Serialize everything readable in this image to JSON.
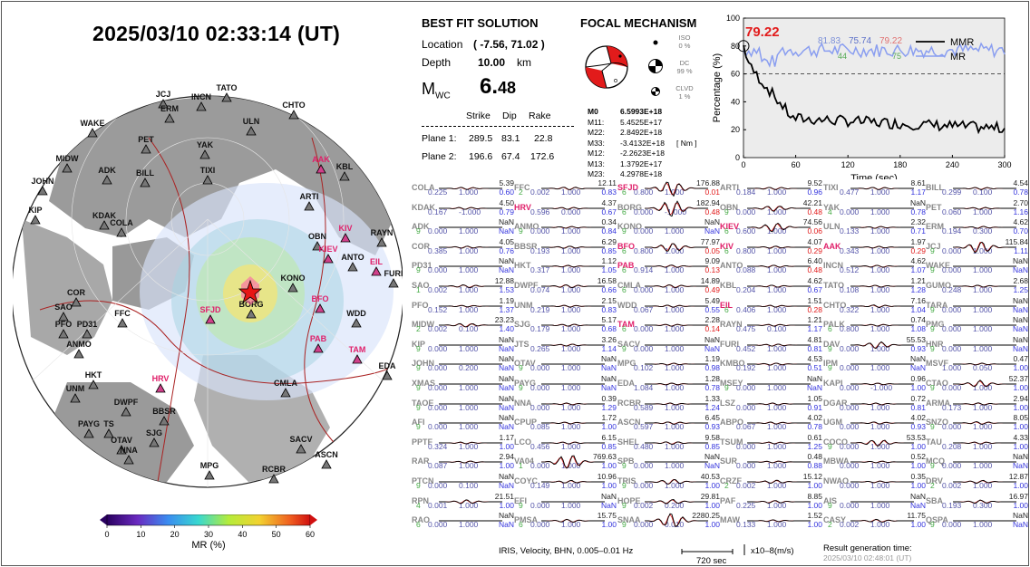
{
  "title": "2025/03/10  02:33:14 (UT)",
  "best_fit": {
    "header": "BEST FIT SOLUTION",
    "location_label": "Location",
    "location_value": "( -7.56,  71.02 )",
    "depth_label": "Depth",
    "depth_value": "10.00",
    "depth_unit": "km",
    "mw_label": "M",
    "mw_sub": "WC",
    "mw_value_int": "6.",
    "mw_value_dec": "48",
    "np_headers": [
      "Strike",
      "Dip",
      "Rake"
    ],
    "planes": [
      {
        "label": "Plane 1:",
        "strike": "289.5",
        "dip": "83.1",
        "rake": "22.8"
      },
      {
        "label": "Plane 2:",
        "strike": "196.6",
        "dip": "67.4",
        "rake": "172.6"
      }
    ]
  },
  "focal": {
    "header": "FOCAL MECHANISM",
    "iso_label": "ISO",
    "iso_value": "0  %",
    "dc_label": "DC",
    "dc_value": "99 %",
    "clvd_label": "CLVD",
    "clvd_value": "1  %",
    "tensor": [
      {
        "k": "M0",
        "v": "6.5993E+18",
        "bold": true
      },
      {
        "k": "M11:",
        "v": "5.4525E+17"
      },
      {
        "k": "M22:",
        "v": "2.8492E+18"
      },
      {
        "k": "M33:",
        "v": "-3.4132E+18",
        "unit": "[ Nm ]"
      },
      {
        "k": "M12:",
        "v": "-2.2623E+18"
      },
      {
        "k": "M13:",
        "v": "1.3792E+17"
      },
      {
        "k": "M23:",
        "v": "4.2978E+18"
      }
    ]
  },
  "mr_plot": {
    "big_value": "79.22",
    "top_values": [
      {
        "text": "81.83",
        "color": "#7b8fd8"
      },
      {
        "text": "75.74",
        "color": "#5b6fc8"
      },
      {
        "text": "79.22",
        "color": "#e07070"
      }
    ],
    "small_values": [
      {
        "text": "44",
        "color": "#5a5"
      },
      {
        "text": "75",
        "color": "#5a5"
      }
    ],
    "legend": [
      "MMR",
      "MR"
    ],
    "ylabel": "Percentage (%)",
    "xlabel": "Time (sec)",
    "xticks": [
      "0",
      "60",
      "120",
      "180",
      "240",
      "300"
    ],
    "yticks": [
      "0",
      "20",
      "40",
      "60",
      "80",
      "100"
    ],
    "ref_line": 60
  },
  "colorbar": {
    "ticks": [
      "0",
      "10",
      "20",
      "30",
      "40",
      "50",
      "60"
    ],
    "label": "MR (%)"
  },
  "map_stations": [
    "TATO",
    "INCN",
    "JCJ",
    "ERM",
    "CHTO",
    "WAKE",
    "ULN",
    "PET",
    "YAK",
    "MIDW",
    "ADK",
    "BILL",
    "TIXI",
    "JOHN",
    "AAK",
    "KBL",
    "KIP",
    "KDAK",
    "COLA",
    "ARTI",
    "KIV",
    "OBN",
    "RAYN",
    "KIEV",
    "ANTO",
    "EIL",
    "FURI",
    "KONO",
    "SAO",
    "COR",
    "SFJD",
    "BORG",
    "BFO",
    "WDD",
    "PFO",
    "PD31",
    "FFC",
    "ANMO",
    "PAB",
    "TAM",
    "EDA",
    "HRV",
    "HKT",
    "UNM",
    "CMLA",
    "DWPF",
    "BBSR",
    "TS",
    "PAYG",
    "SJG",
    "OTAV",
    "NNA",
    "SACV",
    "ASCN",
    "MPG",
    "RCBR"
  ],
  "stations": [
    [
      [
        "COLA",
        "5.39",
        "",
        "0.225",
        "1.000",
        "0.60"
      ],
      [
        "KDAK",
        "4.50",
        "",
        "0.167",
        "-1.000",
        "0.79"
      ],
      [
        "ADK",
        "NaN",
        "9",
        "0.000",
        "1.000",
        "NaN"
      ],
      [
        "COR",
        "4.05",
        "",
        "0.385",
        "1.000",
        "0.76"
      ],
      [
        "PD31",
        "NaN",
        "9",
        "0.000",
        "1.000",
        "NaN"
      ],
      [
        "SAO",
        "12.88",
        "1",
        "0.002",
        "1.000",
        "1.53"
      ],
      [
        "PFO",
        "1.19",
        "",
        "0.152",
        "1.000",
        "1.37"
      ],
      [
        "MIDW",
        "23.23",
        "2",
        "0.002",
        "0.100",
        "1.40"
      ],
      [
        "KIP",
        "NaN",
        "9",
        "0.000",
        "1.000",
        "NaN"
      ],
      [
        "JOHN",
        "NaN",
        "9",
        "0.000",
        "0.200",
        "NaN"
      ],
      [
        "XMAS",
        "NaN",
        "9",
        "0.000",
        "1.000",
        "NaN"
      ],
      [
        "TAOE",
        "NaN",
        "9",
        "0.000",
        "1.000",
        "NaN"
      ],
      [
        "AFI",
        "NaN",
        "9",
        "0.000",
        "1.000",
        "NaN"
      ],
      [
        "PPTF",
        "1.17",
        "",
        "0.324",
        "1.000",
        "1.00"
      ],
      [
        "RAR",
        "2.94",
        "",
        "0.087",
        "1.000",
        "1.00"
      ],
      [
        "PTCN",
        "NaN",
        "9",
        "0.000",
        "0.100",
        "NaN"
      ],
      [
        "RPN",
        "21.51",
        "4",
        "0.001",
        "1.000",
        "1.00"
      ],
      [
        "RAO",
        "NaN",
        "6",
        "0.000",
        "1.000",
        "NaN"
      ]
    ],
    [
      [
        "FFC",
        "12.11",
        "2",
        "0.002",
        "1.000",
        "0.83"
      ],
      [
        "HRV",
        "4.37",
        "",
        "0.596",
        "0.000",
        "0.67"
      ],
      [
        "ANMO",
        "0.34",
        "9",
        "0.000",
        "1.000",
        "0.84"
      ],
      [
        "BBSR",
        "6.29",
        "",
        "0.193",
        "1.000",
        "0.85"
      ],
      [
        "HKT",
        "1.12",
        "",
        "0.317",
        "1.000",
        "1.05"
      ],
      [
        "DWPF",
        "16.58",
        "",
        "0.074",
        "1.000",
        "0.66"
      ],
      [
        "UNM",
        "2.15",
        "",
        "0.219",
        "1.000",
        "0.83"
      ],
      [
        "SJG",
        "5.17",
        "",
        "0.179",
        "1.000",
        "0.68"
      ],
      [
        "JTS",
        "3.26",
        "",
        "0.265",
        "1.000",
        "1.14"
      ],
      [
        "OTAV",
        "NaN",
        "9",
        "0.000",
        "1.000",
        "NaN"
      ],
      [
        "PAYG",
        "NaN",
        "9",
        "0.000",
        "1.000",
        "NaN"
      ],
      [
        "NNA",
        "0.39",
        "",
        "0.000",
        "1.000",
        "1.29"
      ],
      [
        "CPUP",
        "1.72",
        "",
        "0.085",
        "1.000",
        "1.00"
      ],
      [
        "LCO",
        "6.15",
        "",
        "0.456",
        "1.000",
        "0.85"
      ],
      [
        "VA04",
        "769.63",
        "1",
        "0.000",
        "1.000",
        "1.00"
      ],
      [
        "COYC",
        "10.96",
        "",
        "0.149",
        "1.000",
        "1.00"
      ],
      [
        "EFI",
        "NaN",
        "9",
        "0.000",
        "1.000",
        "NaN"
      ],
      [
        "PMSA",
        "15.75",
        "6",
        "0.000",
        "1.000",
        "1.00"
      ]
    ],
    [
      [
        "SFJD",
        "176.88",
        "6",
        "0.800",
        "1.000",
        "0.01"
      ],
      [
        "BORG",
        "182.94",
        "6",
        "0.000",
        "-1.000",
        "0.48"
      ],
      [
        "KONO",
        "NaN",
        "9",
        "0.000",
        "1.000",
        "NaN"
      ],
      [
        "BFO",
        "77.97",
        "6",
        "0.800",
        "1.000",
        "0.05"
      ],
      [
        "PAB",
        "9.09",
        "6",
        "0.914",
        "1.000",
        "0.13"
      ],
      [
        "CMLA",
        "14.89",
        "6",
        "0.000",
        "1.000",
        "0.49"
      ],
      [
        "WDD",
        "5.49",
        "",
        "0.067",
        "1.000",
        "0.55"
      ],
      [
        "TAM",
        "2.28",
        "6",
        "0.000",
        "1.000",
        "0.14"
      ],
      [
        "SACV",
        "NaN",
        "9",
        "0.000",
        "1.000",
        "NaN"
      ],
      [
        "MPG",
        "1.19",
        "",
        "0.102",
        "1.000",
        "0.98"
      ],
      [
        "EDA",
        "1.28",
        "",
        "1.084",
        "1.000",
        "0.78"
      ],
      [
        "RCBR",
        "1.33",
        "",
        "0.589",
        "1.000",
        "1.24"
      ],
      [
        "ASCN",
        "6.45",
        "",
        "0.597",
        "1.000",
        "0.93"
      ],
      [
        "SHEL",
        "9.58",
        "",
        "0.480",
        "1.000",
        "0.85"
      ],
      [
        "SPB",
        "NaN",
        "9",
        "0.000",
        "1.000",
        "NaN"
      ],
      [
        "TRIS",
        "40.53",
        "9",
        "0.000",
        "1.000",
        "1.00"
      ],
      [
        "HOPE",
        "29.81",
        "9",
        "0.002",
        "0.200",
        "1.00"
      ],
      [
        "SNAA",
        "2280.25",
        "9",
        "0.000",
        "0.010",
        "1.00"
      ]
    ],
    [
      [
        "ARTI",
        "9.52",
        "",
        "0.184",
        "1.000",
        "0.96"
      ],
      [
        "OBN",
        "42.21",
        "9",
        "0.000",
        "1.000",
        "0.48"
      ],
      [
        "KIEV",
        "74.56",
        "6",
        "0.600",
        "1.000",
        "0.06"
      ],
      [
        "KIV",
        "4.07",
        "6",
        "0.800",
        "1.000",
        "0.29"
      ],
      [
        "ANTO",
        "6.40",
        "",
        "0.088",
        "1.000",
        "0.48"
      ],
      [
        "KBL",
        "4.62",
        "",
        "0.204",
        "1.000",
        "0.67"
      ],
      [
        "EIL",
        "1.51",
        "6",
        "0.406",
        "1.000",
        "0.28"
      ],
      [
        "RAYN",
        "1.21",
        "",
        "0.475",
        "0.100",
        "1.17"
      ],
      [
        "FURI",
        "4.81",
        "",
        "0.452",
        "1.000",
        "0.81"
      ],
      [
        "KMBO",
        "4.53",
        "",
        "0.192",
        "1.000",
        "0.51"
      ],
      [
        "MSEY",
        "NaN",
        "9",
        "0.000",
        "1.000",
        "NaN"
      ],
      [
        "LSZ",
        "1.05",
        "",
        "0.000",
        "1.000",
        "0.91"
      ],
      [
        "ABPO",
        "4.02",
        "",
        "0.067",
        "1.000",
        "0.78"
      ],
      [
        "TSUM",
        "0.61",
        "",
        "0.000",
        "1.000",
        "1.25"
      ],
      [
        "SUR",
        "0.48",
        "",
        "0.000",
        "1.000",
        "0.88"
      ],
      [
        "CRZF",
        "15.12",
        "2",
        "0.002",
        "1.000",
        "1.00"
      ],
      [
        "PAF",
        "8.85",
        "",
        "0.225",
        "1.000",
        "1.00"
      ],
      [
        "MAW",
        "1.52",
        "",
        "0.133",
        "1.000",
        "1.00"
      ]
    ],
    [
      [
        "TIXI",
        "8.61",
        "",
        "0.477",
        "1.000",
        "1.17"
      ],
      [
        "YAK",
        "NaN",
        "4",
        "0.000",
        "1.000",
        "0.78"
      ],
      [
        "ULN",
        "2.32",
        "",
        "0.133",
        "1.000",
        "0.71"
      ],
      [
        "AAK",
        "1.97",
        "",
        "0.343",
        "1.000",
        "0.29"
      ],
      [
        "INCN",
        "4.62",
        "",
        "0.512",
        "1.000",
        "1.07"
      ],
      [
        "TATO",
        "1.21",
        "",
        "0.108",
        "1.000",
        "1.28"
      ],
      [
        "CHTO",
        "7.16",
        "",
        "0.322",
        "1.000",
        "1.04"
      ],
      [
        "PALK",
        "0.74",
        "6",
        "0.800",
        "1.000",
        "1.08"
      ],
      [
        "DAV",
        "55.53",
        "9",
        "0.000",
        "1.000",
        "0.93"
      ],
      [
        "IPM",
        "NaN",
        "9",
        "0.000",
        "1.000",
        "NaN"
      ],
      [
        "KAPI",
        "0.96",
        "",
        "0.000",
        "-1.000",
        "1.00"
      ],
      [
        "DGAR",
        "0.72",
        "",
        "0.000",
        "1.000",
        "0.81"
      ],
      [
        "UGM",
        "4.02",
        "",
        "0.000",
        "1.000",
        "0.93"
      ],
      [
        "COCO",
        "53.53",
        "9",
        "0.000",
        "1.000",
        "1.00"
      ],
      [
        "MBWA",
        "0.52",
        "",
        "0.000",
        "1.000",
        "1.00"
      ],
      [
        "NWAO",
        "0.35",
        "",
        "0.000",
        "1.000",
        "1.00"
      ],
      [
        "AIS",
        "NaN",
        "9",
        "0.000",
        "1.000",
        "NaN"
      ],
      [
        "CASY",
        "11.75",
        "2",
        "0.002",
        "1.000",
        "1.00"
      ]
    ],
    [
      [
        "BILL",
        "4.54",
        "",
        "0.299",
        "0.100",
        "0.78"
      ],
      [
        "PET",
        "2.70",
        "",
        "0.060",
        "1.000",
        "1.16"
      ],
      [
        "ERM",
        "4.62",
        "",
        "0.194",
        "0.300",
        "0.70"
      ],
      [
        "JCJ",
        "115.84",
        "9",
        "0.000",
        "1.000",
        "1.11"
      ],
      [
        "WAKE",
        "NaN",
        "9",
        "0.000",
        "1.000",
        "NaN"
      ],
      [
        "GUMO",
        "2.68",
        "",
        "0.248",
        "1.000",
        "1.25"
      ],
      [
        "TARA",
        "NaN",
        "9",
        "0.000",
        "1.000",
        "NaN"
      ],
      [
        "PMG",
        "NaN",
        "9",
        "0.000",
        "1.000",
        "NaN"
      ],
      [
        "HNR",
        "NaN",
        "9",
        "0.000",
        "1.000",
        "NaN"
      ],
      [
        "MSVF",
        "0.47",
        "",
        "1.000",
        "0.050",
        "1.00"
      ],
      [
        "CTAO",
        "52.37",
        "9",
        "0.000",
        "1.000",
        "1.00"
      ],
      [
        "ARMA",
        "2.94",
        "",
        "0.173",
        "1.000",
        "1.00"
      ],
      [
        "SNZO",
        "8.05",
        "9",
        "0.000",
        "1.000",
        "1.00"
      ],
      [
        "TAU",
        "4.33",
        "",
        "0.208",
        "1.000",
        "1.00"
      ],
      [
        "MCQ",
        "NaN",
        "9",
        "0.000",
        "1.000",
        "NaN"
      ],
      [
        "DRV",
        "12.87",
        "2",
        "0.002",
        "1.000",
        "1.00"
      ],
      [
        "SBA",
        "16.97",
        "",
        "0.193",
        "0.300",
        "1.00"
      ],
      [
        "QSPA",
        "NaN",
        "9",
        "0.000",
        "1.000",
        "NaN"
      ]
    ]
  ],
  "highlight_stations": [
    "SFJD",
    "BFO",
    "PAB",
    "TAM",
    "KIEV",
    "KIV",
    "EIL",
    "HRV",
    "AAK"
  ],
  "footer": {
    "data_info": "IRIS, Velocity,   BHN, 0.005–0.01 Hz",
    "scale_label": "720 sec",
    "unit_label": "x10–8(m/s)",
    "gen_label": "Result generation time:",
    "gen_time": "2025/03/10 02:48:01 (UT)"
  }
}
